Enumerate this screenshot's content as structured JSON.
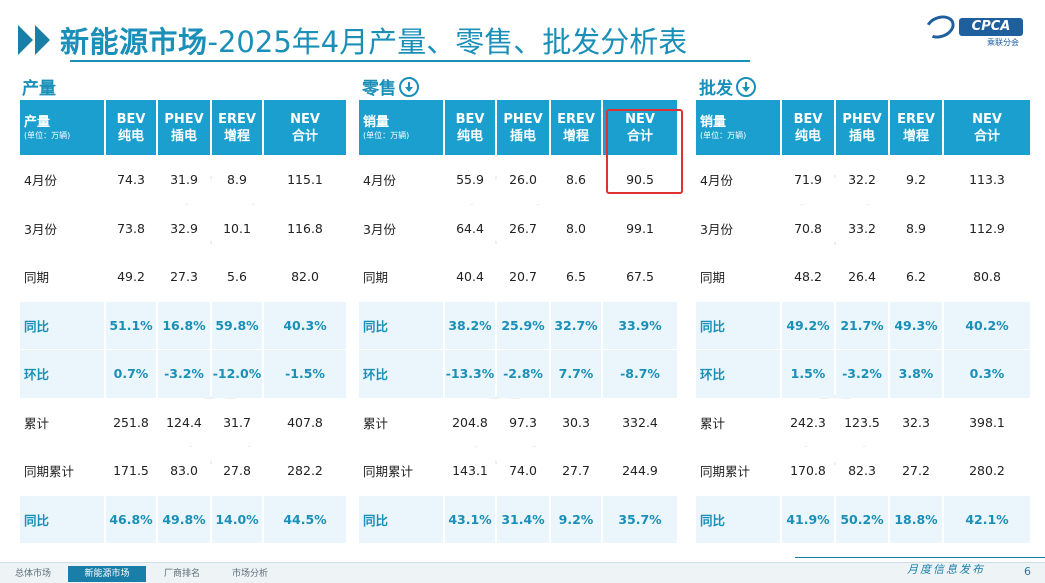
{
  "title": {
    "main": "新能源市场",
    "sub": "-2025年4月产量、零售、批发分析表"
  },
  "logo": {
    "text": "CPCA",
    "sub": "乘联分会"
  },
  "sections": [
    {
      "label": "产量",
      "header_first": "产量",
      "unit": "(单位：万辆)",
      "columns": [
        "BEV\n纯电",
        "PHEV\n插电",
        "EREV\n增程",
        "NEV\n合计"
      ],
      "rows": [
        {
          "label": "4月份",
          "values": [
            "74.3",
            "31.9",
            "8.9",
            "115.1"
          ],
          "pct": false
        },
        {
          "label": "3月份",
          "values": [
            "73.8",
            "32.9",
            "10.1",
            "116.8"
          ],
          "pct": false
        },
        {
          "label": "同期",
          "values": [
            "49.2",
            "27.3",
            "5.6",
            "82.0"
          ],
          "pct": false
        },
        {
          "label": "同比",
          "values": [
            "51.1%",
            "16.8%",
            "59.8%",
            "40.3%"
          ],
          "pct": true
        },
        {
          "label": "环比",
          "values": [
            "0.7%",
            "-3.2%",
            "-12.0%",
            "-1.5%"
          ],
          "pct": true
        },
        {
          "label": "累计",
          "values": [
            "251.8",
            "124.4",
            "31.7",
            "407.8"
          ],
          "pct": false
        },
        {
          "label": "同期累计",
          "values": [
            "171.5",
            "83.0",
            "27.8",
            "282.2"
          ],
          "pct": false
        },
        {
          "label": "同比",
          "values": [
            "46.8%",
            "49.8%",
            "14.0%",
            "44.5%"
          ],
          "pct": true
        }
      ]
    },
    {
      "label": "零售",
      "header_first": "销量",
      "unit": "(单位：万辆)",
      "columns": [
        "BEV\n纯电",
        "PHEV\n插电",
        "EREV\n增程",
        "NEV\n合计"
      ],
      "rows": [
        {
          "label": "4月份",
          "values": [
            "55.9",
            "26.0",
            "8.6",
            "90.5"
          ],
          "pct": false
        },
        {
          "label": "3月份",
          "values": [
            "64.4",
            "26.7",
            "8.0",
            "99.1"
          ],
          "pct": false
        },
        {
          "label": "同期",
          "values": [
            "40.4",
            "20.7",
            "6.5",
            "67.5"
          ],
          "pct": false
        },
        {
          "label": "同比",
          "values": [
            "38.2%",
            "25.9%",
            "32.7%",
            "33.9%"
          ],
          "pct": true
        },
        {
          "label": "环比",
          "values": [
            "-13.3%",
            "-2.8%",
            "7.7%",
            "-8.7%"
          ],
          "pct": true
        },
        {
          "label": "累计",
          "values": [
            "204.8",
            "97.3",
            "30.3",
            "332.4"
          ],
          "pct": false
        },
        {
          "label": "同期累计",
          "values": [
            "143.1",
            "74.0",
            "27.7",
            "244.9"
          ],
          "pct": false
        },
        {
          "label": "同比",
          "values": [
            "43.1%",
            "31.4%",
            "9.2%",
            "35.7%"
          ],
          "pct": true
        }
      ]
    },
    {
      "label": "批发",
      "header_first": "销量",
      "unit": "(单位：万辆)",
      "columns": [
        "BEV\n纯电",
        "PHEV\n插电",
        "EREV\n增程",
        "NEV\n合计"
      ],
      "rows": [
        {
          "label": "4月份",
          "values": [
            "71.9",
            "32.2",
            "9.2",
            "113.3"
          ],
          "pct": false
        },
        {
          "label": "3月份",
          "values": [
            "70.8",
            "33.2",
            "8.9",
            "112.9"
          ],
          "pct": false
        },
        {
          "label": "同期",
          "values": [
            "48.2",
            "26.4",
            "6.2",
            "80.8"
          ],
          "pct": false
        },
        {
          "label": "同比",
          "values": [
            "49.2%",
            "21.7%",
            "49.3%",
            "40.2%"
          ],
          "pct": true
        },
        {
          "label": "环比",
          "values": [
            "1.5%",
            "-3.2%",
            "3.8%",
            "0.3%"
          ],
          "pct": true
        },
        {
          "label": "累计",
          "values": [
            "242.3",
            "123.5",
            "32.3",
            "398.1"
          ],
          "pct": false
        },
        {
          "label": "同期累计",
          "values": [
            "170.8",
            "82.3",
            "27.2",
            "280.2"
          ],
          "pct": false
        },
        {
          "label": "同比",
          "values": [
            "41.9%",
            "50.2%",
            "18.8%",
            "42.1%"
          ],
          "pct": true
        }
      ]
    }
  ],
  "footer": {
    "tabs": [
      "总体市场",
      "新能源市场",
      "厂商排名",
      "市场分析"
    ],
    "active_tab": 1,
    "slogan": "月度信息发布",
    "page": "6"
  },
  "colors": {
    "accent": "#1a9fcf",
    "title": "#1a8fb8",
    "highlight": "#e03030"
  }
}
